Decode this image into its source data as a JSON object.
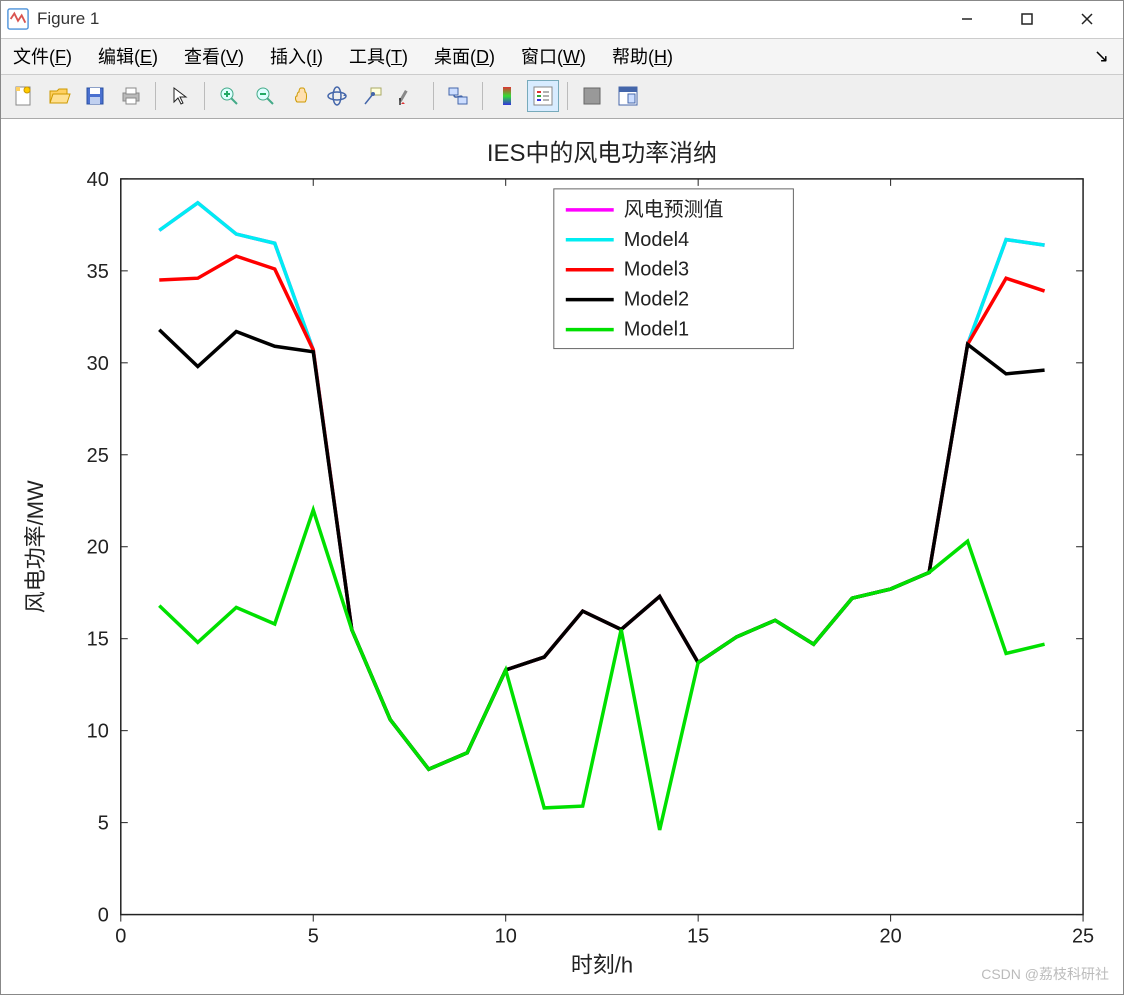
{
  "window": {
    "title": "Figure 1",
    "minimize": "—",
    "maximize": "□",
    "close": "✕"
  },
  "menu": {
    "file": "文件(F)",
    "edit": "编辑(E)",
    "view": "查看(V)",
    "insert": "插入(I)",
    "tools": "工具(T)",
    "desktop": "桌面(D)",
    "window": "窗口(W)",
    "help": "帮助(H)"
  },
  "toolbar": {
    "new": "new-figure",
    "open": "open",
    "save": "save",
    "print": "print",
    "pointer": "pointer",
    "zoomin": "zoom-in",
    "zoomout": "zoom-out",
    "pan": "pan",
    "rotate": "rotate-3d",
    "datatip": "data-cursor",
    "brush": "brush",
    "link": "link-plots",
    "colorbar": "colorbar",
    "legend": "legend",
    "hide": "hide-tools",
    "dock": "dock"
  },
  "chart": {
    "type": "line",
    "title": "IES中的风电功率消纳",
    "xlabel": "时刻/h",
    "ylabel": "风电功率/MW",
    "title_fontsize": 24,
    "label_fontsize": 22,
    "tick_fontsize": 20,
    "xlim": [
      0,
      25
    ],
    "ylim": [
      0,
      40
    ],
    "xticks": [
      0,
      5,
      10,
      15,
      20,
      25
    ],
    "yticks": [
      0,
      5,
      10,
      15,
      20,
      25,
      30,
      35,
      40
    ],
    "background_color": "#ffffff",
    "axis_color": "#222222",
    "line_width": 3.5,
    "series": [
      {
        "name": "风电预测值",
        "color": "#ff00ff",
        "x": [
          1,
          2,
          3,
          4,
          5,
          6,
          7,
          8,
          9,
          10,
          11,
          12,
          13,
          14,
          15,
          16,
          17,
          18,
          19,
          20,
          21,
          22,
          23,
          24
        ],
        "y": [
          37.2,
          38.7,
          37.0,
          36.5,
          30.7,
          15.5,
          10.6,
          7.9,
          8.8,
          13.3,
          14.0,
          16.5,
          15.5,
          17.3,
          13.7,
          15.1,
          16.0,
          14.7,
          17.2,
          17.7,
          18.6,
          31.0,
          36.7,
          36.4
        ]
      },
      {
        "name": "Model4",
        "color": "#00edf2",
        "x": [
          1,
          2,
          3,
          4,
          5,
          6,
          7,
          8,
          9,
          10,
          11,
          12,
          13,
          14,
          15,
          16,
          17,
          18,
          19,
          20,
          21,
          22,
          23,
          24
        ],
        "y": [
          37.2,
          38.7,
          37.0,
          36.5,
          30.7,
          15.5,
          10.6,
          7.9,
          8.8,
          13.3,
          14.0,
          16.5,
          15.5,
          17.3,
          13.7,
          15.1,
          16.0,
          14.7,
          17.2,
          17.7,
          18.6,
          31.0,
          36.7,
          36.4
        ]
      },
      {
        "name": "Model3",
        "color": "#ff0000",
        "x": [
          1,
          2,
          3,
          4,
          5,
          6,
          7,
          8,
          9,
          10,
          11,
          12,
          13,
          14,
          15,
          16,
          17,
          18,
          19,
          20,
          21,
          22,
          23,
          24
        ],
        "y": [
          34.5,
          34.6,
          35.8,
          35.1,
          30.7,
          15.5,
          10.6,
          7.9,
          8.8,
          13.3,
          14.0,
          16.5,
          15.5,
          17.3,
          13.7,
          15.1,
          16.0,
          14.7,
          17.2,
          17.7,
          18.6,
          31.0,
          34.6,
          33.9
        ]
      },
      {
        "name": "Model2",
        "color": "#000000",
        "x": [
          1,
          2,
          3,
          4,
          5,
          6,
          7,
          8,
          9,
          10,
          11,
          12,
          13,
          14,
          15,
          16,
          17,
          18,
          19,
          20,
          21,
          22,
          23,
          24
        ],
        "y": [
          31.8,
          29.8,
          31.7,
          30.9,
          30.6,
          15.5,
          10.6,
          7.9,
          8.8,
          13.3,
          14.0,
          16.5,
          15.5,
          17.3,
          13.7,
          15.1,
          16.0,
          14.7,
          17.2,
          17.7,
          18.6,
          31.0,
          29.4,
          29.6
        ]
      },
      {
        "name": "Model1",
        "color": "#00e000",
        "x": [
          1,
          2,
          3,
          4,
          5,
          6,
          7,
          8,
          9,
          10,
          11,
          12,
          13,
          14,
          15,
          16,
          17,
          18,
          19,
          20,
          21,
          22,
          23,
          24
        ],
        "y": [
          16.8,
          14.8,
          16.7,
          15.8,
          22.0,
          15.5,
          10.6,
          7.9,
          8.8,
          13.3,
          5.8,
          5.9,
          15.5,
          4.6,
          13.7,
          15.1,
          16.0,
          14.7,
          17.2,
          17.7,
          18.6,
          20.3,
          14.2,
          14.7
        ]
      }
    ],
    "legend": {
      "position": "top-center",
      "items": [
        "风电预测值",
        "Model4",
        "Model3",
        "Model2",
        "Model1"
      ]
    }
  },
  "watermark": "CSDN @荔枝科研社"
}
